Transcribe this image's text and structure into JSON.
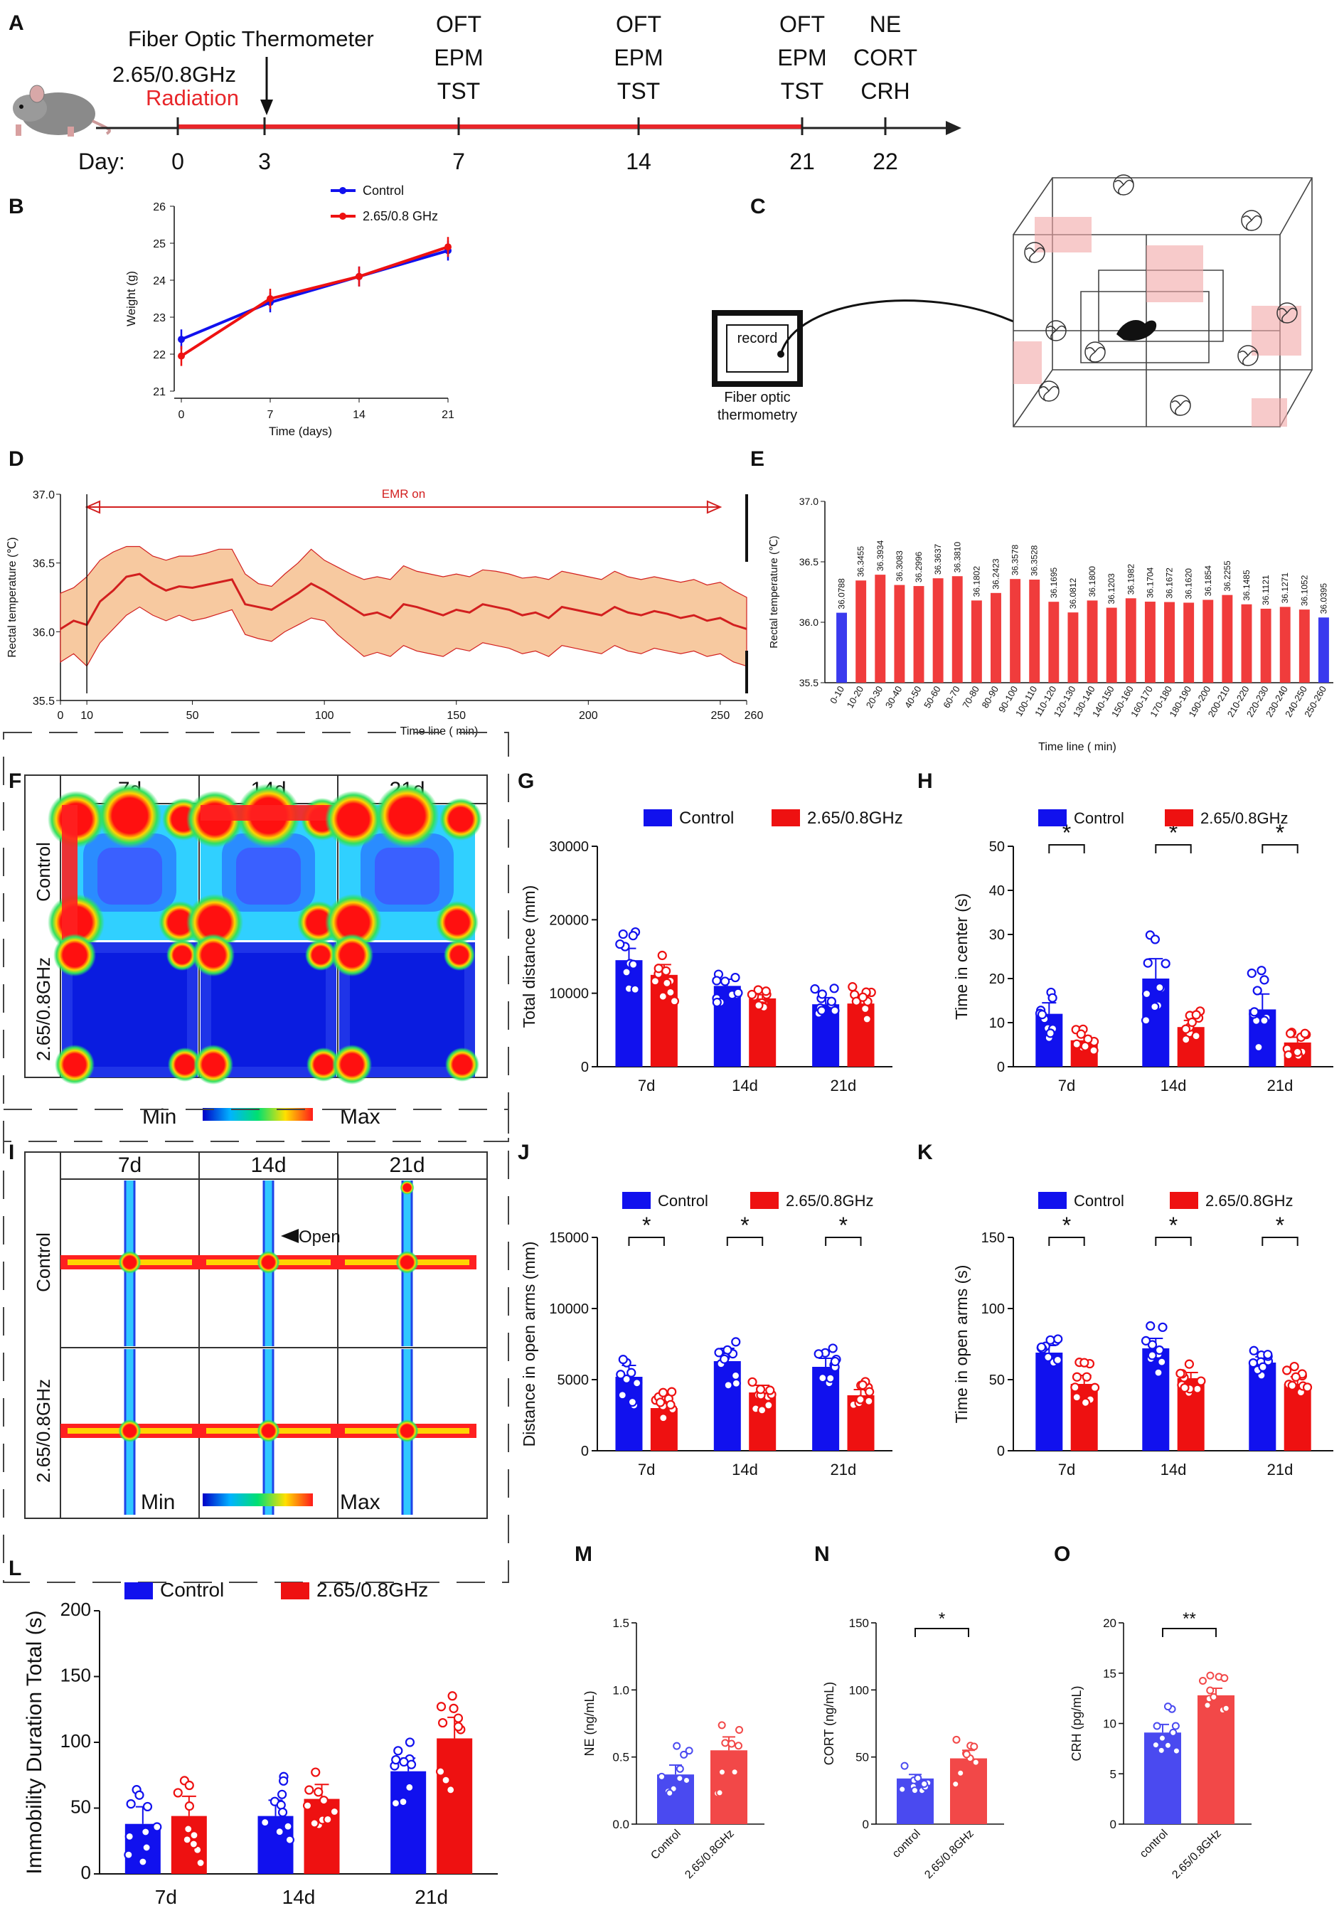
{
  "panel_letters": [
    "A",
    "B",
    "C",
    "D",
    "E",
    "F",
    "G",
    "H",
    "I",
    "J",
    "K",
    "L",
    "M",
    "N",
    "O"
  ],
  "timeline": {
    "left_label": "2.65/0.8GHz",
    "radiation_label": "Radiation",
    "arrow_label": "Fiber Optic Thermometer",
    "day_label": "Day:",
    "days": [
      "0",
      "3",
      "7",
      "14",
      "21",
      "22"
    ],
    "tests": [
      {
        "day": "7",
        "lines": [
          "OFT",
          "EPM",
          "TST"
        ]
      },
      {
        "day": "14",
        "lines": [
          "OFT",
          "EPM",
          "TST"
        ]
      },
      {
        "day": "21",
        "lines": [
          "OFT",
          "EPM",
          "TST"
        ]
      },
      {
        "day": "22",
        "lines": [
          "NE",
          "CORT",
          "CRH"
        ]
      }
    ],
    "colors": {
      "radiation": "#e8262a",
      "axis": "#222222"
    }
  },
  "panel_c": {
    "record_label": "record",
    "caption_line1": "Fiber optic",
    "caption_line2": "thermometry"
  },
  "heatmap_labels": {
    "min": "Min",
    "max": "Max"
  },
  "panel_f": {
    "cols": [
      "7d",
      "14d",
      "21d"
    ],
    "rows": [
      "Control",
      "2.65/0.8GHz"
    ]
  },
  "panel_i": {
    "cols": [
      "7d",
      "14d",
      "21d"
    ],
    "rows": [
      "Control",
      "2.65/0.8GHz"
    ],
    "open_label": "Open"
  },
  "colors": {
    "control": "#1111ee",
    "treatment": "#ee1111",
    "band": "#f7c9a0",
    "line_d": "#d21f1f"
  },
  "chart_data": [
    {
      "panel": "B",
      "type": "line",
      "xlabel": "Time (days)",
      "ylabel": "Weight (g)",
      "ylim": [
        21,
        26
      ],
      "yticks": [
        "21",
        "22",
        "23",
        "24",
        "25",
        "26"
      ],
      "x": [
        0,
        7,
        14,
        21
      ],
      "xticks": [
        "0",
        "7",
        "14",
        "21"
      ],
      "series": [
        {
          "name": "Control",
          "values": [
            22.4,
            23.4,
            24.1,
            24.8
          ]
        },
        {
          "name": "2.65/0.8 GHz",
          "values": [
            21.95,
            23.5,
            24.1,
            24.9
          ]
        }
      ]
    },
    {
      "panel": "D",
      "type": "area",
      "title": "EMR on",
      "xlabel": "Time line ( min)",
      "ylabel": "Rectal temperature (℃)",
      "xlim": [
        0,
        260
      ],
      "ylim": [
        35.5,
        37.0
      ],
      "xticks": [
        "0",
        "10",
        "50",
        "100",
        "150",
        "200",
        "250",
        "260"
      ],
      "yticks": [
        "35.5",
        "36.0",
        "36.5",
        "37.0"
      ],
      "x": [
        0,
        5,
        10,
        15,
        20,
        25,
        30,
        35,
        40,
        45,
        50,
        55,
        60,
        65,
        70,
        75,
        80,
        85,
        90,
        95,
        100,
        105,
        110,
        115,
        120,
        125,
        130,
        135,
        140,
        145,
        150,
        155,
        160,
        165,
        170,
        175,
        180,
        185,
        190,
        195,
        200,
        205,
        210,
        215,
        220,
        225,
        230,
        235,
        240,
        245,
        250,
        255,
        260
      ],
      "mean": [
        36.02,
        36.08,
        36.05,
        36.22,
        36.3,
        36.4,
        36.42,
        36.35,
        36.3,
        36.33,
        36.32,
        36.34,
        36.36,
        36.38,
        36.2,
        36.18,
        36.16,
        36.22,
        36.28,
        36.35,
        36.3,
        36.24,
        36.18,
        36.12,
        36.14,
        36.1,
        36.2,
        36.18,
        36.15,
        36.12,
        36.16,
        36.14,
        36.2,
        36.18,
        36.16,
        36.12,
        36.14,
        36.1,
        36.18,
        36.16,
        36.14,
        36.12,
        36.18,
        36.14,
        36.12,
        36.15,
        36.13,
        36.1,
        36.12,
        36.08,
        36.1,
        36.05,
        36.02
      ],
      "upper": [
        36.28,
        36.32,
        36.4,
        36.52,
        36.58,
        36.62,
        36.62,
        36.55,
        36.52,
        36.55,
        36.55,
        36.57,
        36.6,
        36.6,
        36.42,
        36.35,
        36.33,
        36.42,
        36.5,
        36.6,
        36.52,
        36.47,
        36.42,
        36.38,
        36.4,
        36.38,
        36.48,
        36.44,
        36.42,
        36.4,
        36.42,
        36.4,
        36.45,
        36.44,
        36.42,
        36.39,
        36.4,
        36.38,
        36.44,
        36.42,
        36.4,
        36.38,
        36.44,
        36.4,
        36.38,
        36.4,
        36.38,
        36.36,
        36.38,
        36.34,
        36.36,
        36.3,
        36.25
      ],
      "lower": [
        35.78,
        35.84,
        35.75,
        35.92,
        36.02,
        36.12,
        36.18,
        36.12,
        36.08,
        36.12,
        36.08,
        36.1,
        36.13,
        36.16,
        35.98,
        35.95,
        35.93,
        36.0,
        36.05,
        36.1,
        36.08,
        35.98,
        35.9,
        35.82,
        35.85,
        35.82,
        35.9,
        35.86,
        35.84,
        35.82,
        35.88,
        35.86,
        35.92,
        35.9,
        35.88,
        35.84,
        35.86,
        35.82,
        35.9,
        35.88,
        35.86,
        35.84,
        35.9,
        35.86,
        35.84,
        35.88,
        35.86,
        35.84,
        35.86,
        35.82,
        35.84,
        35.78,
        35.75
      ]
    },
    {
      "panel": "E",
      "type": "bar",
      "xlabel": "Time line ( min)",
      "ylabel": "Rectal temperature (℃)",
      "ylim": [
        35.5,
        37.0
      ],
      "yticks": [
        "35.5",
        "36.0",
        "36.5",
        "37.0"
      ],
      "categories": [
        "0-10",
        "10-20",
        "20-30",
        "30-40",
        "40-50",
        "50-60",
        "60-70",
        "70-80",
        "80-90",
        "90-100",
        "100-110",
        "110-120",
        "120-130",
        "130-140",
        "140-150",
        "150-160",
        "160-170",
        "170-180",
        "180-190",
        "190-200",
        "200-210",
        "210-220",
        "220-230",
        "230-240",
        "240-250",
        "250-260"
      ],
      "values": [
        36.0788,
        36.3455,
        36.3934,
        36.3083,
        36.2996,
        36.3637,
        36.381,
        36.1802,
        36.2423,
        36.3578,
        36.3528,
        36.1695,
        36.0812,
        36.18,
        36.1203,
        36.1982,
        36.1704,
        36.1672,
        36.162,
        36.1854,
        36.2255,
        36.1485,
        36.1121,
        36.1271,
        36.1052,
        36.0395
      ],
      "labels": [
        "36.0788",
        "36.3455",
        "36.3934",
        "36.3083",
        "36.2996",
        "36.3637",
        "36.3810",
        "36.1802",
        "36.2423",
        "36.3578",
        "36.3528",
        "36.1695",
        "36.0812",
        "36.1800",
        "36.1203",
        "36.1982",
        "36.1704",
        "36.1672",
        "36.1620",
        "36.1854",
        "36.2255",
        "36.1485",
        "36.1121",
        "36.1271",
        "36.1052",
        "36.0395"
      ]
    },
    {
      "panel": "G",
      "type": "bar",
      "ylabel": "Total distance (mm)",
      "ylim": [
        0,
        30000
      ],
      "yticks": [
        "0",
        "10000",
        "20000",
        "30000"
      ],
      "categories": [
        "7d",
        "14d",
        "21d"
      ],
      "legend": [
        "Control",
        "2.65/0.8GHz"
      ],
      "series": [
        {
          "name": "Control",
          "values": [
            14500,
            11000,
            8500
          ],
          "sem": [
            1600,
            900,
            900
          ]
        },
        {
          "name": "2.65/0.8GHz",
          "values": [
            12500,
            9300,
            8600
          ],
          "sem": [
            1400,
            500,
            900
          ]
        }
      ],
      "significance": []
    },
    {
      "panel": "H",
      "type": "bar",
      "ylabel": "Time in center (s)",
      "ylim": [
        0,
        50
      ],
      "yticks": [
        "0",
        "10",
        "20",
        "30",
        "40",
        "50"
      ],
      "categories": [
        "7d",
        "14d",
        "21d"
      ],
      "legend": [
        "Control",
        "2.65/0.8GHz"
      ],
      "series": [
        {
          "name": "Control",
          "values": [
            12,
            20,
            13
          ],
          "sem": [
            2.5,
            4.5,
            3.5
          ]
        },
        {
          "name": "2.65/0.8GHz",
          "values": [
            6,
            9,
            5.5
          ],
          "sem": [
            1,
            1.5,
            1.2
          ]
        }
      ],
      "significance": [
        "*",
        "*",
        "*"
      ]
    },
    {
      "panel": "J",
      "type": "bar",
      "ylabel": "Distance in open arms (mm)",
      "ylim": [
        0,
        15000
      ],
      "yticks": [
        "0",
        "5000",
        "10000",
        "15000"
      ],
      "categories": [
        "7d",
        "14d",
        "21d"
      ],
      "legend": [
        "Control",
        "2.65/0.8GHz"
      ],
      "series": [
        {
          "name": "Control",
          "values": [
            5200,
            6300,
            5900
          ],
          "sem": [
            800,
            900,
            600
          ]
        },
        {
          "name": "2.65/0.8GHz",
          "values": [
            3000,
            4100,
            3900
          ],
          "sem": [
            500,
            500,
            400
          ]
        }
      ],
      "significance": [
        "*",
        "*",
        "*"
      ]
    },
    {
      "panel": "K",
      "type": "bar",
      "ylabel": "Time in open arms (s)",
      "ylim": [
        0,
        150
      ],
      "yticks": [
        "0",
        "50",
        "100",
        "150"
      ],
      "categories": [
        "7d",
        "14d",
        "21d"
      ],
      "legend": [
        "Control",
        "2.65/0.8GHz"
      ],
      "series": [
        {
          "name": "Control",
          "values": [
            69,
            72,
            62
          ],
          "sem": [
            5,
            7,
            4
          ]
        },
        {
          "name": "2.65/0.8GHz",
          "values": [
            47,
            51,
            47
          ],
          "sem": [
            6,
            4,
            5
          ]
        }
      ],
      "significance": [
        "*",
        "*",
        "*"
      ]
    },
    {
      "panel": "L",
      "type": "bar",
      "ylabel": "Immobility  Duration Total (s)",
      "ylim": [
        0,
        200
      ],
      "yticks": [
        "0",
        "50",
        "100",
        "150",
        "200"
      ],
      "categories": [
        "7d",
        "14d",
        "21d"
      ],
      "legend": [
        "Control",
        "2.65/0.8GHz"
      ],
      "series": [
        {
          "name": "Control",
          "values": [
            38,
            44,
            78
          ],
          "sem": [
            13,
            12,
            10
          ]
        },
        {
          "name": "2.65/0.8GHz",
          "values": [
            44,
            57,
            103
          ],
          "sem": [
            15,
            11,
            16
          ]
        }
      ],
      "significance": []
    },
    {
      "panel": "M",
      "type": "bar",
      "ylabel": "NE (ng/mL)",
      "ylim": [
        0,
        1.5
      ],
      "yticks": [
        "0.0",
        "0.5",
        "1.0",
        "1.5"
      ],
      "categories": [
        "Control",
        "2.65/0.8GHz"
      ],
      "values": [
        0.37,
        0.55
      ],
      "sem": [
        0.07,
        0.1
      ],
      "significance": ""
    },
    {
      "panel": "N",
      "type": "bar",
      "ylabel": "CORT (ng/mL)",
      "ylim": [
        0,
        150
      ],
      "yticks": [
        "0",
        "50",
        "100",
        "150"
      ],
      "categories": [
        "control",
        "2.65/0.8GHz"
      ],
      "values": [
        34,
        49
      ],
      "sem": [
        3,
        6
      ],
      "significance": "*"
    },
    {
      "panel": "O",
      "type": "bar",
      "ylabel": "CRH (pg/mL)",
      "ylim": [
        0,
        20
      ],
      "yticks": [
        "0",
        "5",
        "10",
        "15",
        "20"
      ],
      "categories": [
        "control",
        "2.65/0.8GHz"
      ],
      "values": [
        9.1,
        12.8
      ],
      "sem": [
        0.8,
        0.7
      ],
      "significance": "**"
    }
  ]
}
